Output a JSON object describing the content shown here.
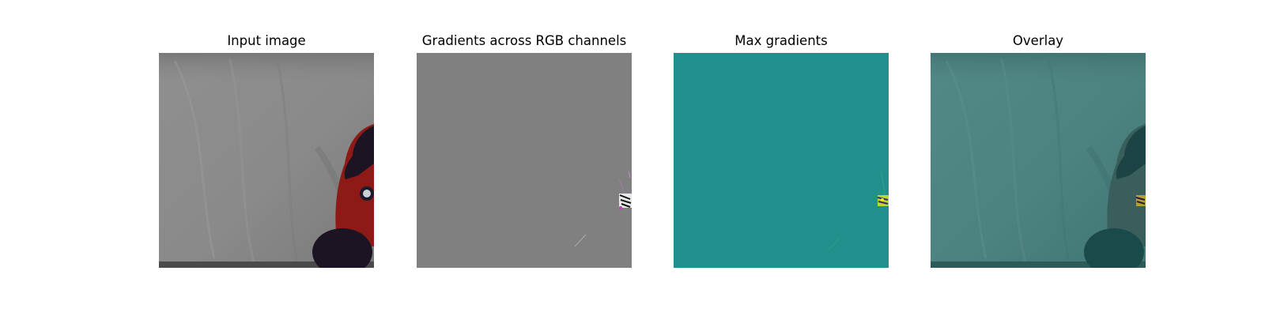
{
  "panels": [
    {
      "title": "Input image"
    },
    {
      "title": "Gradients across RGB channels"
    },
    {
      "title": "Max gradients"
    },
    {
      "title": "Overlay"
    }
  ],
  "colors": {
    "background": "#ffffff",
    "input_gray": "#8c8c8c",
    "robot_red": "#8e1a18",
    "robot_dark": "#1c1422",
    "gradient_gray": "#808080",
    "max_grad_teal": "#21908d",
    "overlay_teal": "#4a807e"
  }
}
